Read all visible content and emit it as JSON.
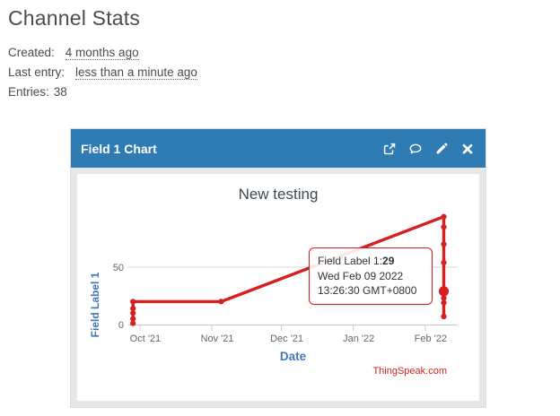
{
  "page": {
    "title": "Channel Stats",
    "meta": [
      {
        "label": "Created:",
        "value": "4 months ago"
      },
      {
        "label": "Last entry:",
        "value": "less than a minute ago"
      },
      {
        "label": "Entries:",
        "value": "38"
      }
    ]
  },
  "panel": {
    "title": "Field 1 Chart",
    "icons": [
      "external-link",
      "comment",
      "edit",
      "close"
    ],
    "header_color": "#2f7bb4"
  },
  "tooltip": {
    "label": "Field Label 1:",
    "value": "29",
    "date": "Wed Feb 09 2022",
    "time": "13:26:30 GMT+0800"
  },
  "chart_data": {
    "type": "line",
    "title": "New testing",
    "xlabel": "Date",
    "ylabel": "Field Label 1",
    "watermark": "ThingSpeak.com",
    "grid": "horizontal-only",
    "legend": "none",
    "colors": {
      "line": "#d62020",
      "axis_label": "#4577b5",
      "title": "#3e4a54",
      "tick_text": "#666666",
      "grid_line": "#d8d8d8",
      "axis_line": "#c8c8c8"
    },
    "x_axis": {
      "range": [
        "2021-09-26",
        "2022-02-15"
      ],
      "ticks": [
        {
          "label": "Oct '21",
          "date": "2021-10-01"
        },
        {
          "label": "Nov '21",
          "date": "2021-11-01"
        },
        {
          "label": "Dec '21",
          "date": "2021-12-01"
        },
        {
          "label": "Jan '22",
          "date": "2022-01-01"
        },
        {
          "label": "Feb '22",
          "date": "2022-02-01"
        }
      ]
    },
    "y_axis": {
      "ticks": [
        {
          "label": "0",
          "value": 0
        },
        {
          "label": "50",
          "value": 50
        }
      ],
      "min": 0,
      "max": 105
    },
    "series": [
      {
        "name": "Field Label 1",
        "color": "#d62020",
        "points": [
          {
            "date": "2021-09-28",
            "value": 1
          },
          {
            "date": "2021-09-28",
            "value": 5
          },
          {
            "date": "2021-09-28",
            "value": 10
          },
          {
            "date": "2021-09-28",
            "value": 14
          },
          {
            "date": "2021-09-28",
            "value": 20
          },
          {
            "date": "2021-11-05",
            "value": 20
          },
          {
            "date": "2022-02-09",
            "value": 94
          },
          {
            "date": "2022-02-09",
            "value": 85
          },
          {
            "date": "2022-02-09",
            "value": 70
          },
          {
            "date": "2022-02-09",
            "value": 54
          },
          {
            "date": "2022-02-09",
            "value": 29,
            "highlight": true
          },
          {
            "date": "2022-02-09",
            "value": 23
          },
          {
            "date": "2022-02-09",
            "value": 19
          },
          {
            "date": "2022-02-09",
            "value": 7
          }
        ]
      }
    ]
  }
}
